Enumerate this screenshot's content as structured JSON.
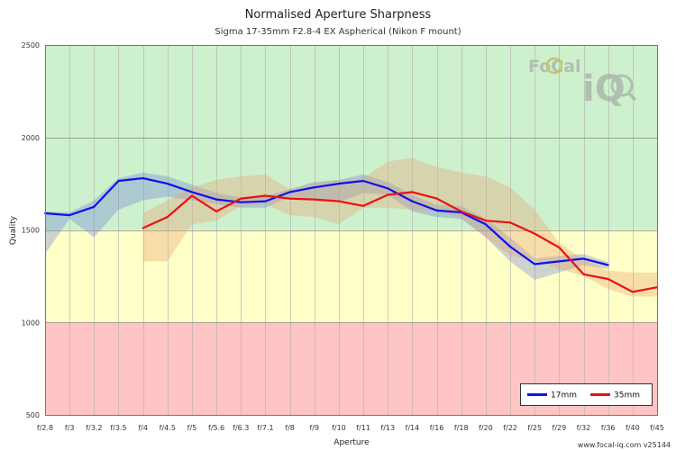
{
  "chart_data": {
    "type": "line",
    "title": "Normalised Aperture Sharpness",
    "subtitle": "Sigma 17-35mm F2.8-4 EX Aspherical (Nikon F mount)",
    "xlabel": "Aperture",
    "ylabel": "Quality",
    "categories": [
      "f/2.8",
      "f/3",
      "f/3.2",
      "f/3.5",
      "f/4",
      "f/4.5",
      "f/5",
      "f/5.6",
      "f/6.3",
      "f/7.1",
      "f/8",
      "f/9",
      "f/10",
      "f/11",
      "f/13",
      "f/14",
      "f/16",
      "f/18",
      "f/20",
      "f/22",
      "f/25",
      "f/29",
      "f/32",
      "f/36",
      "f/40",
      "f/45"
    ],
    "ylim": [
      500,
      2500
    ],
    "yticks": [
      500,
      1000,
      1500,
      2000,
      2500
    ],
    "zones": [
      {
        "from": 500,
        "to": 1000,
        "color": "#ffc4c4"
      },
      {
        "from": 1000,
        "to": 1500,
        "color": "#ffffc8"
      },
      {
        "from": 1500,
        "to": 2500,
        "color": "#cdf0cd"
      }
    ],
    "series": [
      {
        "name": "17mm",
        "color": "#1010ee",
        "band_color": "#7080d8",
        "values": [
          1590,
          1580,
          1625,
          1765,
          1780,
          1750,
          1705,
          1665,
          1650,
          1655,
          1705,
          1730,
          1750,
          1765,
          1725,
          1655,
          1605,
          1595,
          1530,
          1410,
          1315,
          1330,
          1345,
          1310,
          null,
          null
        ],
        "band_low": [
          1370,
          1560,
          1460,
          1610,
          1660,
          1680,
          1660,
          1640,
          1620,
          1620,
          1680,
          1670,
          1650,
          1700,
          1690,
          1600,
          1570,
          1560,
          1460,
          1330,
          1230,
          1270,
          1310,
          1290,
          null,
          null
        ],
        "band_high": [
          1600,
          1595,
          1660,
          1780,
          1810,
          1790,
          1745,
          1700,
          1675,
          1685,
          1720,
          1760,
          1770,
          1800,
          1760,
          1690,
          1635,
          1630,
          1560,
          1460,
          1345,
          1360,
          1370,
          1325,
          null,
          null
        ]
      },
      {
        "name": "35mm",
        "color": "#ee1010",
        "band_color": "#e8a070",
        "values": [
          null,
          null,
          null,
          null,
          1510,
          1570,
          1685,
          1600,
          1670,
          1685,
          1670,
          1665,
          1655,
          1630,
          1690,
          1705,
          1670,
          1600,
          1550,
          1540,
          1480,
          1405,
          1260,
          1235,
          1165,
          1190
        ],
        "band_low": [
          null,
          null,
          null,
          null,
          1330,
          1330,
          1530,
          1550,
          1630,
          1640,
          1580,
          1570,
          1530,
          1620,
          1620,
          1610,
          1600,
          1570,
          1460,
          1360,
          1340,
          1290,
          1250,
          1180,
          1140,
          1140
        ],
        "band_high": [
          null,
          null,
          null,
          null,
          1590,
          1660,
          1730,
          1770,
          1790,
          1800,
          1720,
          1750,
          1770,
          1780,
          1870,
          1890,
          1840,
          1810,
          1790,
          1730,
          1610,
          1430,
          1340,
          1280,
          1270,
          1270
        ]
      }
    ],
    "legend": "bottom-right",
    "grid": true
  },
  "branding": {
    "logo_top": "FoCal",
    "logo_bottom": "iQ",
    "watermark": "www.focal-iq.com v25144"
  }
}
